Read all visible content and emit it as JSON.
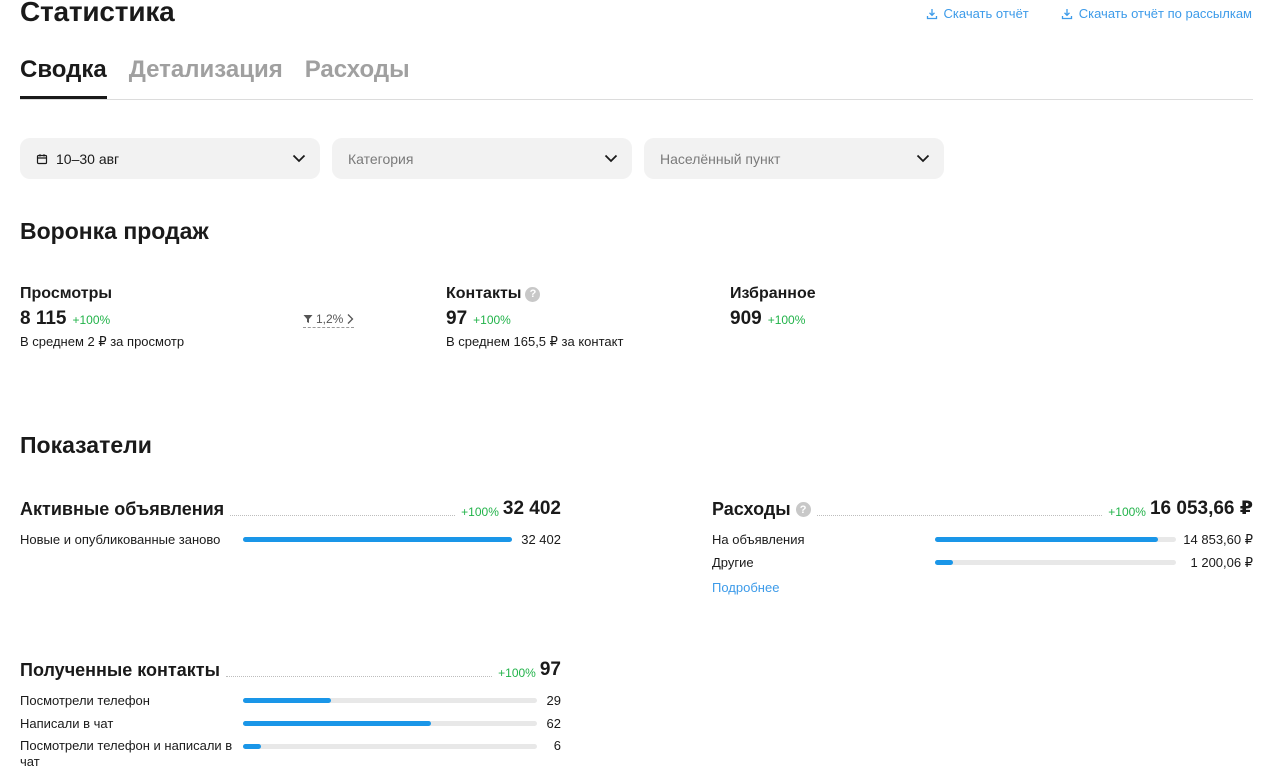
{
  "header": {
    "title": "Статистика",
    "download_report": "Скачать отчёт",
    "download_mailing_report": "Скачать отчёт по рассылкам"
  },
  "tabs": [
    {
      "label": "Сводка",
      "active": true
    },
    {
      "label": "Детализация",
      "active": false
    },
    {
      "label": "Расходы",
      "active": false
    }
  ],
  "filters": {
    "date": "10–30 авг",
    "category_placeholder": "Категория",
    "city_placeholder": "Населённый пункт"
  },
  "funnel": {
    "title": "Воронка продаж",
    "views": {
      "label": "Просмотры",
      "value": "8 115",
      "delta": "+100%",
      "note": "В среднем 2 ₽ за просмотр"
    },
    "conversion": "1,2%",
    "contacts": {
      "label": "Контакты",
      "value": "97",
      "delta": "+100%",
      "note": "В среднем 165,5 ₽ за контакт"
    },
    "favorites": {
      "label": "Избранное",
      "value": "909",
      "delta": "+100%"
    }
  },
  "indicators": {
    "title": "Показатели",
    "active_ads": {
      "title": "Активные объявления",
      "delta": "+100%",
      "total": "32 402",
      "rows": [
        {
          "label": "Новые и опубликованные заново",
          "value": "32 402",
          "fraction": 1.0
        }
      ]
    },
    "expenses": {
      "title": "Расходы",
      "delta": "+100%",
      "total": "16 053,66 ₽",
      "rows": [
        {
          "label": "На объявления",
          "value": "14 853,60 ₽",
          "fraction": 0.925
        },
        {
          "label": "Другие",
          "value": "1 200,06 ₽",
          "fraction": 0.075
        }
      ],
      "more_link": "Подробнее"
    },
    "contacts": {
      "title": "Полученные контакты",
      "delta": "+100%",
      "total": "97",
      "rows": [
        {
          "label": "Посмотрели телефон",
          "value": "29",
          "fraction": 0.3
        },
        {
          "label": "Написали в чат",
          "value": "62",
          "fraction": 0.64
        },
        {
          "label": "Посмотрели телефон и написали в чат",
          "value": "6",
          "fraction": 0.06
        }
      ]
    }
  },
  "colors": {
    "accent": "#3d9be9",
    "bar_fill": "#1a96e8",
    "positive": "#22b34a"
  },
  "icons": {
    "download": "download-icon",
    "calendar": "calendar-icon",
    "chevron": "chevron-down-icon",
    "help": "help-icon",
    "funnel": "funnel-icon"
  }
}
